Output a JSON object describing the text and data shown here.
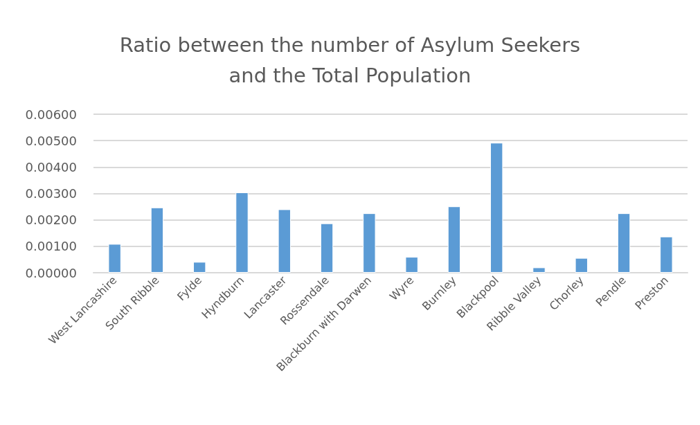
{
  "chart_data": {
    "type": "bar",
    "title": "Ratio between the number of Asylum Seekers\nand the Total Population",
    "categories": [
      "West Lancashire",
      "South Ribble",
      "Fylde",
      "Hyndburn",
      "Lancaster",
      "Rossendale",
      "Blackburn with Darwen",
      "Wyre",
      "Burnley",
      "Blackpool",
      "Ribble Valley",
      "Chorley",
      "Pendle",
      "Preston"
    ],
    "values": [
      0.00109,
      0.00247,
      0.00041,
      0.00304,
      0.0024,
      0.00187,
      0.00225,
      0.0006,
      0.00251,
      0.00492,
      0.0002,
      0.00056,
      0.00225,
      0.00137
    ],
    "color": "#5b9bd5",
    "ylim": [
      0,
      0.006
    ],
    "yticks": [
      {
        "value": 0,
        "label": "0.00000"
      },
      {
        "value": 0.001,
        "label": "0.00100"
      },
      {
        "value": 0.002,
        "label": "0.00200"
      },
      {
        "value": 0.003,
        "label": "0.00300"
      },
      {
        "value": 0.004,
        "label": "0.00400"
      },
      {
        "value": 0.005,
        "label": "0.00500"
      },
      {
        "value": 0.006,
        "label": "0.00600"
      }
    ],
    "grid": "y"
  }
}
